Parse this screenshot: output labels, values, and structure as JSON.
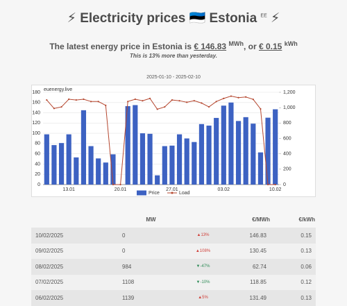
{
  "header": {
    "title": "⚡ Electricity prices 🇪🇪 Estonia",
    "title_sup": "EE",
    "title_end": "⚡",
    "price_line": [
      "The latest energy price in Estonia is",
      "€ 146.83",
      "MWh",
      ", or",
      "€ 0.15",
      "kWh"
    ],
    "note": "This is 13% more than yesterday."
  },
  "chart_data": {
    "type": "bar",
    "subtitle": "2025-01-10 - 2025-02-10",
    "annotation": "euenergy.live",
    "categories": [
      null,
      null,
      null,
      "13.01",
      null,
      null,
      null,
      null,
      null,
      null,
      "20.01",
      null,
      null,
      null,
      null,
      null,
      null,
      "27.01",
      null,
      null,
      null,
      null,
      null,
      null,
      "03.02",
      null,
      null,
      null,
      null,
      null,
      null,
      "10.02"
    ],
    "series": [
      {
        "name": "Price",
        "color": "#3d62c2",
        "values": [
          98,
          77,
          81,
          98,
          53,
          145,
          75,
          51,
          43,
          59,
          null,
          153,
          155,
          100,
          99,
          18,
          75,
          76,
          98,
          90,
          83,
          118,
          115,
          130,
          154,
          160,
          124,
          131.49,
          118.85,
          62.74,
          130.45,
          146.83
        ]
      },
      {
        "name": "Load",
        "color": "#b5472f",
        "axis": "y2",
        "values": [
          1100,
          990,
          1010,
          1110,
          1100,
          1110,
          1080,
          1080,
          1030,
          0,
          0,
          1080,
          1110,
          1090,
          1120,
          980,
          1010,
          1100,
          1090,
          1070,
          1090,
          1060,
          1010,
          1080,
          1120,
          1150,
          1130,
          1139,
          1108,
          984,
          0,
          0
        ]
      }
    ],
    "ylim": [
      0,
      180
    ],
    "yticks": [
      0,
      20,
      40,
      60,
      80,
      100,
      120,
      140,
      160,
      180
    ],
    "y2lim": [
      0,
      1200
    ],
    "y2ticks": [
      0,
      200,
      400,
      600,
      800,
      {
        "value": 1000,
        "label": "1,000"
      },
      {
        "value": 1200,
        "label": "1,200"
      }
    ],
    "grid": true,
    "legend": "bottom"
  },
  "table": {
    "columns": {
      "load": "MW",
      "price_mwh": "€/MWh",
      "price_kwh": "€/kWh"
    },
    "rows": [
      [
        "10/02/2025",
        "0",
        "▲13%",
        "146.83",
        "0.15"
      ],
      [
        "09/02/2025",
        "0",
        "▲108%",
        "130.45",
        "0.13"
      ],
      [
        "08/02/2025",
        "984",
        "▼-47%",
        "62.74",
        "0.06"
      ],
      [
        "07/02/2025",
        "1108",
        "▼-10%",
        "118.85",
        "0.12"
      ],
      [
        "06/02/2025",
        "1139",
        "▲5%",
        "131.49",
        "0.13"
      ]
    ]
  }
}
